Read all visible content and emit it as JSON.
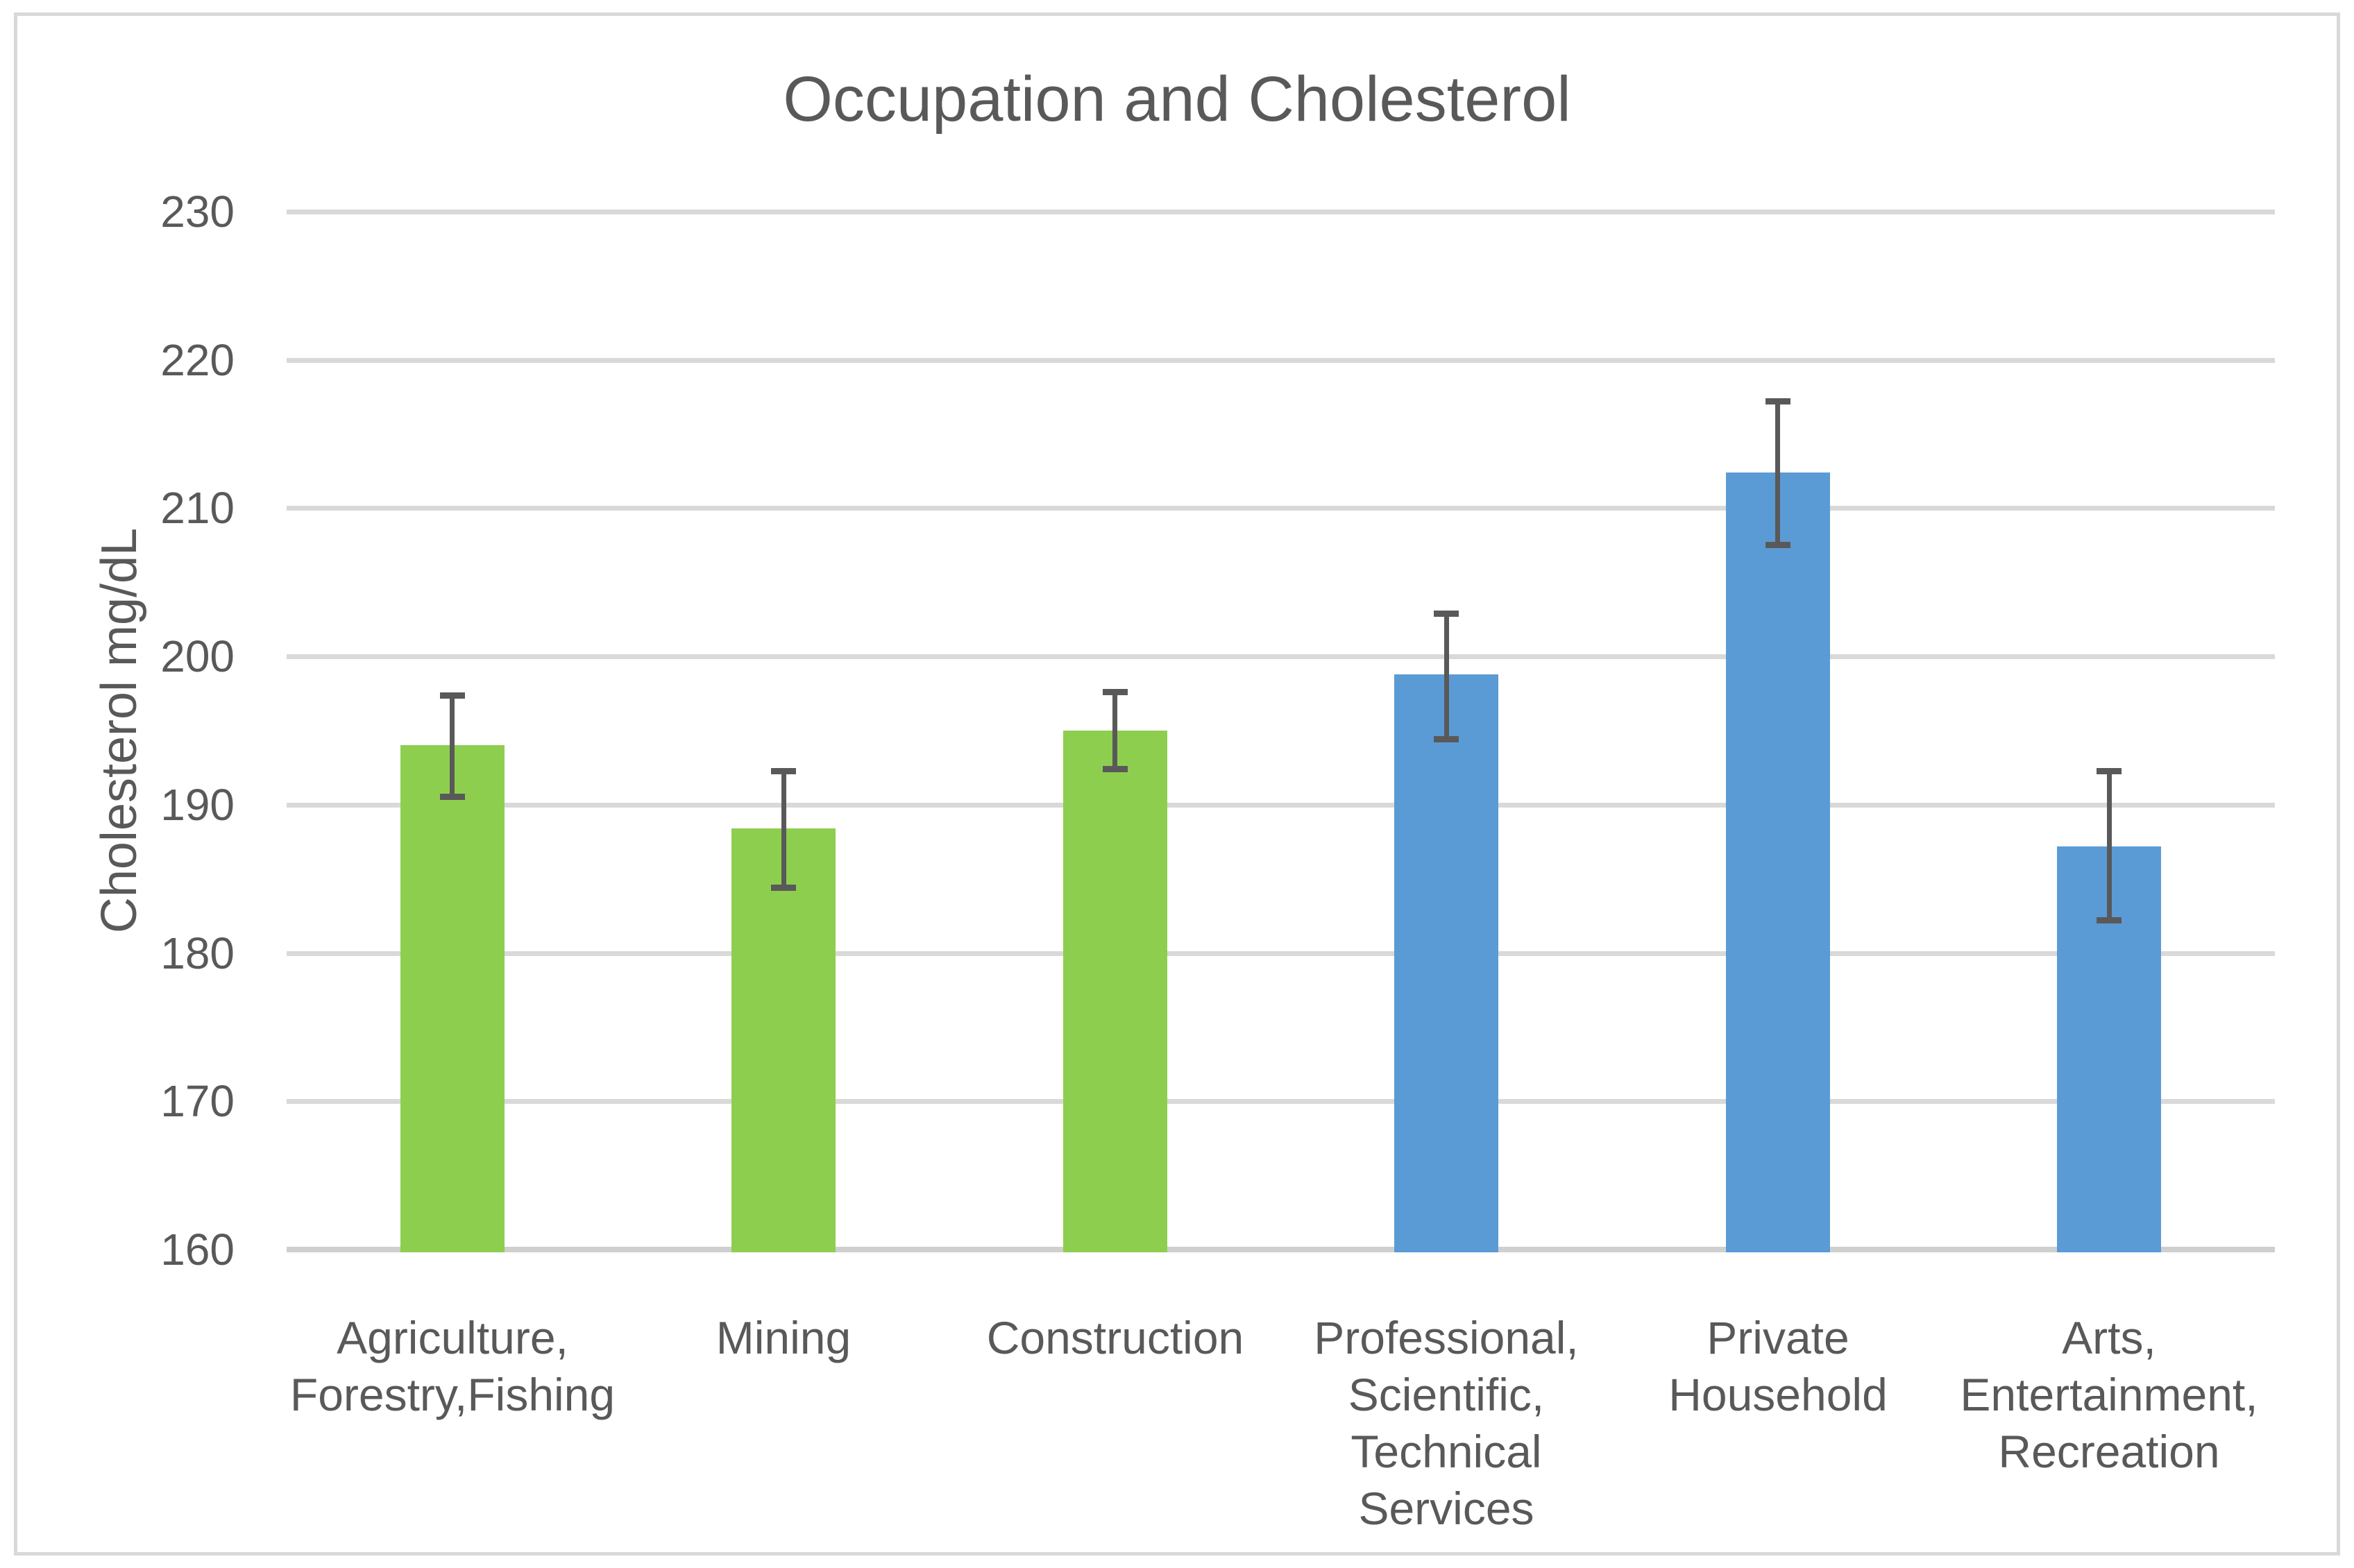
{
  "page": {
    "background": "#FFFFFF",
    "border_color": "#D9D9D9"
  },
  "chart_data": {
    "type": "bar",
    "title": "Occupation and Cholesterol",
    "ylabel": "Cholesterol mg/dL",
    "xlabel": "",
    "ylim": [
      160,
      230
    ],
    "ytick_step": 10,
    "ytick_labels": [
      "160",
      "170",
      "180",
      "190",
      "200",
      "210",
      "220",
      "230"
    ],
    "grid": true,
    "legend": false,
    "categories": [
      "Agriculture, Forestry,Fishing",
      "Mining",
      "Construction",
      "Professional, Scientific, Technical Services",
      "Private Household",
      "Arts, Entertainment, Recreation"
    ],
    "category_label_lines": [
      [
        "Agriculture,",
        "Forestry,Fishing"
      ],
      [
        "Mining"
      ],
      [
        "Construction"
      ],
      [
        "Professional,",
        "Scientific,",
        "Technical",
        "Services"
      ],
      [
        "Private",
        "Household"
      ],
      [
        "Arts,",
        "Entertainment,",
        "Recreation"
      ]
    ],
    "values": [
      194.0,
      188.4,
      195.0,
      198.8,
      212.4,
      187.2
    ],
    "error_bars": {
      "upper": [
        197.5,
        192.4,
        197.7,
        203.0,
        217.3,
        192.4
      ],
      "lower": [
        190.4,
        184.3,
        192.3,
        194.3,
        207.4,
        182.1
      ]
    },
    "bar_colors": [
      "#8DCE4F",
      "#8DCE4F",
      "#8DCE4F",
      "#5B9BD5",
      "#5B9BD5",
      "#5B9BD5"
    ],
    "gridline_color": "#D9D9D9",
    "axis_line_color": "#CFCFCF",
    "error_bar_color": "#595959",
    "text_color": "#595959"
  }
}
